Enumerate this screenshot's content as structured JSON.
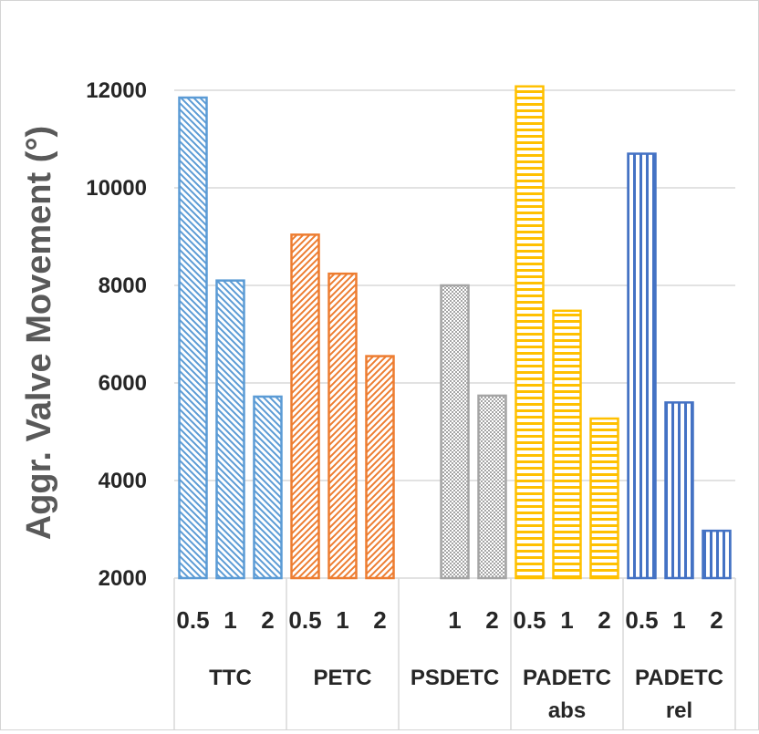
{
  "chart_data": {
    "type": "bar",
    "title": "",
    "ylabel": "Aggr. Valve Movement (°)",
    "xlabel": "",
    "ylim": [
      2000,
      12000
    ],
    "yticks": [
      "2000",
      "4000",
      "6000",
      "8000",
      "10000",
      "12000"
    ],
    "grid": true,
    "groups": [
      {
        "name_lines": [
          "TTC"
        ],
        "color": "#5B9BD5",
        "pattern": "diag-down",
        "bars": [
          {
            "label": "0.5",
            "value": 11850
          },
          {
            "label": "1",
            "value": 8100
          },
          {
            "label": "2",
            "value": 5720
          }
        ]
      },
      {
        "name_lines": [
          "PETC"
        ],
        "color": "#ED7D31",
        "pattern": "diag-up",
        "bars": [
          {
            "label": "0.5",
            "value": 9040
          },
          {
            "label": "1",
            "value": 8240
          },
          {
            "label": "2",
            "value": 6550
          }
        ]
      },
      {
        "name_lines": [
          "PSDETC"
        ],
        "color": "#A5A5A5",
        "pattern": "dots",
        "bars": [
          {
            "label": "1",
            "value": 8000
          },
          {
            "label": "2",
            "value": 5740
          }
        ]
      },
      {
        "name_lines": [
          "PADETC",
          "abs"
        ],
        "color": "#FFC000",
        "pattern": "horizontal",
        "bars": [
          {
            "label": "0.5",
            "value": 12080
          },
          {
            "label": "1",
            "value": 7480
          },
          {
            "label": "2",
            "value": 5270
          }
        ]
      },
      {
        "name_lines": [
          "PADETC",
          "rel"
        ],
        "color": "#4472C4",
        "pattern": "vertical",
        "bars": [
          {
            "label": "0.5",
            "value": 10700
          },
          {
            "label": "1",
            "value": 5600
          },
          {
            "label": "2",
            "value": 2970
          }
        ]
      }
    ]
  }
}
